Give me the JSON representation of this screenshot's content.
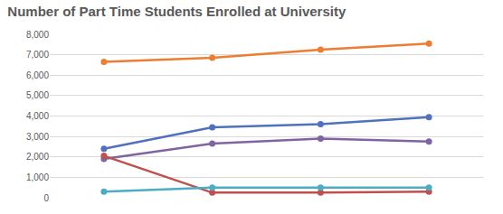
{
  "chart_data": {
    "type": "line",
    "title": "Number of Part Time Students Enrolled at University",
    "categories": [
      null,
      null,
      null,
      null
    ],
    "series": [
      {
        "color": "#ED7D31",
        "values": [
          6650,
          6850,
          7250,
          7550
        ]
      },
      {
        "color": "#4F71BE",
        "values": [
          2400,
          3450,
          3600,
          3950
        ]
      },
      {
        "color": "#8064A2",
        "values": [
          1900,
          2650,
          2900,
          2750
        ]
      },
      {
        "color": "#C0504D",
        "values": [
          2050,
          250,
          250,
          300
        ]
      },
      {
        "color": "#4BACC6",
        "values": [
          300,
          500,
          500,
          500
        ]
      }
    ],
    "ylim": [
      0,
      8000
    ],
    "yticks": [
      0,
      {
        "value": 1000,
        "label": "1,000"
      },
      {
        "value": 2000,
        "label": "2,000"
      },
      {
        "value": 3000,
        "label": "3,000"
      },
      {
        "value": 4000,
        "label": "4,000"
      },
      {
        "value": 5000,
        "label": "5,000"
      },
      {
        "value": 6000,
        "label": "6,000"
      },
      {
        "value": 7000,
        "label": "7,000"
      },
      {
        "value": 8000,
        "label": "8,000"
      }
    ],
    "grid": true,
    "tick_labels": "y",
    "marker": "circle",
    "line_style": "solid"
  }
}
